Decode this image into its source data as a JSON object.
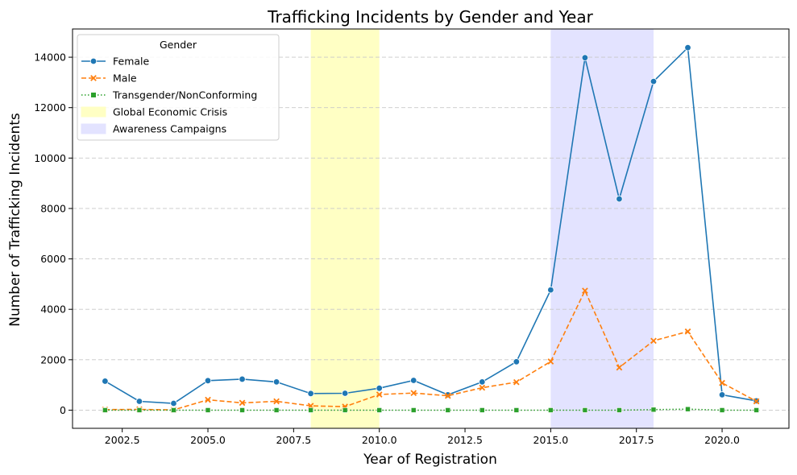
{
  "chart_data": {
    "type": "line",
    "title": "Trafficking Incidents by Gender and Year",
    "xlabel": "Year of Registration",
    "ylabel": "Number of Trafficking Incidents",
    "xlim": [
      2001.05,
      2021.95
    ],
    "ylim": [
      -720,
      15120
    ],
    "xticks": [
      2002.5,
      2005.0,
      2007.5,
      2010.0,
      2012.5,
      2015.0,
      2017.5,
      2020.0
    ],
    "xtick_labels": [
      "2002.5",
      "2005.0",
      "2007.5",
      "2010.0",
      "2012.5",
      "2015.0",
      "2017.5",
      "2020.0"
    ],
    "yticks": [
      0,
      2000,
      4000,
      6000,
      8000,
      10000,
      12000,
      14000
    ],
    "ytick_labels": [
      "0",
      "2000",
      "4000",
      "6000",
      "8000",
      "10000",
      "12000",
      "14000"
    ],
    "grid": "y-dashed",
    "legend": {
      "title": "Gender",
      "placement": "top-left"
    },
    "x": [
      2002,
      2003,
      2004,
      2005,
      2006,
      2007,
      2008,
      2009,
      2010,
      2011,
      2012,
      2013,
      2014,
      2015,
      2016,
      2017,
      2018,
      2019,
      2020,
      2021
    ],
    "series": [
      {
        "name": "Female",
        "color": "#1f77b4",
        "style": "solid",
        "marker": "circle",
        "values": [
          1150,
          350,
          270,
          1170,
          1230,
          1120,
          660,
          670,
          870,
          1180,
          610,
          1120,
          1920,
          4770,
          13980,
          8380,
          13040,
          14380,
          610,
          370
        ]
      },
      {
        "name": "Male",
        "color": "#ff7f0e",
        "style": "dashed",
        "marker": "x",
        "values": [
          20,
          30,
          10,
          410,
          290,
          350,
          170,
          140,
          620,
          680,
          570,
          890,
          1110,
          1930,
          4740,
          1690,
          2750,
          3120,
          1080,
          350
        ]
      },
      {
        "name": "Transgender/NonConforming",
        "color": "#2ca02c",
        "style": "dotted",
        "marker": "square",
        "values": [
          0,
          0,
          0,
          0,
          0,
          0,
          0,
          0,
          0,
          0,
          0,
          0,
          0,
          0,
          0,
          0,
          20,
          40,
          0,
          0
        ]
      }
    ],
    "spans": [
      {
        "name": "Global Economic Crisis",
        "x0": 2008,
        "x1": 2010,
        "color": "#ffffc4"
      },
      {
        "name": "Awareness Campaigns",
        "x0": 2015,
        "x1": 2018,
        "color": "#e3e3ff"
      }
    ]
  }
}
